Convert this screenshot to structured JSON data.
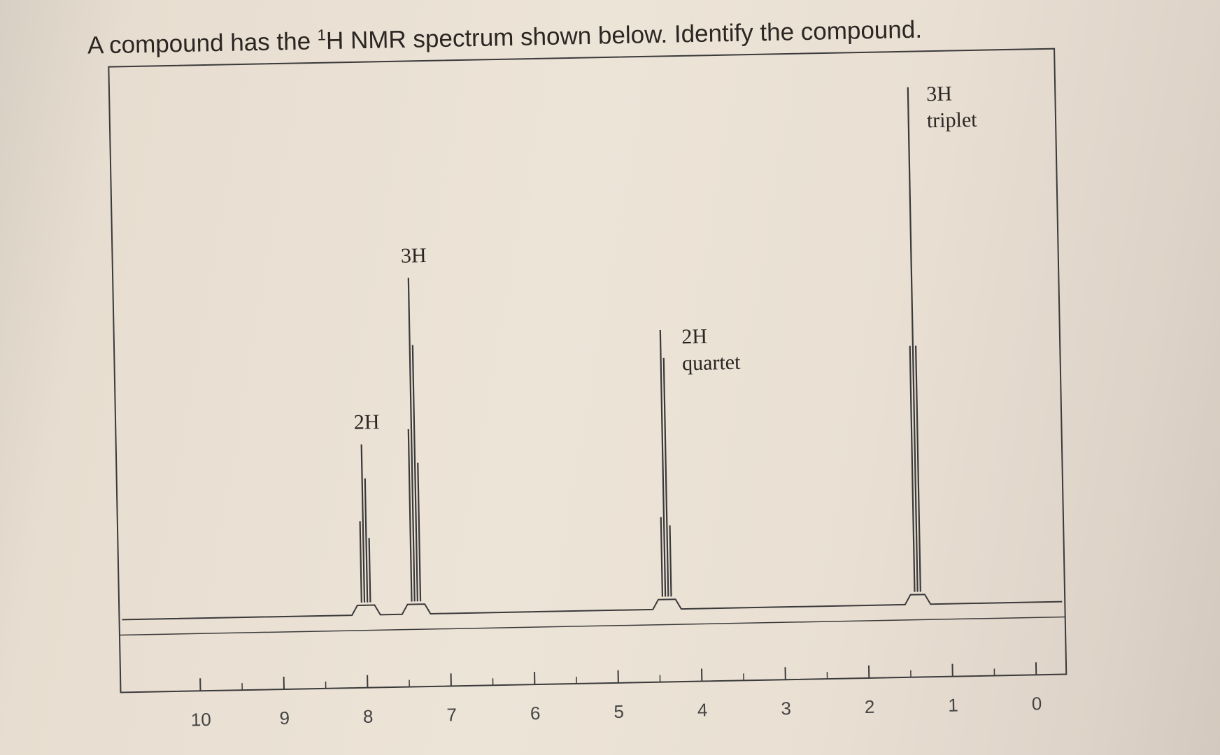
{
  "question": {
    "prefix": "A compound has the ",
    "superscript": "1",
    "suffix": "H NMR spectrum shown below. Identify the compound."
  },
  "chart_data": {
    "type": "line",
    "title": "",
    "xlabel": "",
    "ylabel": "",
    "x_reversed": true,
    "xlim": [
      10,
      0
    ],
    "x_ticks": [
      "10",
      "9",
      "8",
      "7",
      "6",
      "5",
      "4",
      "3",
      "2",
      "1",
      "0"
    ],
    "peaks": [
      {
        "shift": 8.0,
        "integration": "2H",
        "multiplicity": "",
        "relative_height": 0.33
      },
      {
        "shift": 7.4,
        "integration": "3H",
        "multiplicity": "",
        "relative_height": 0.65
      },
      {
        "shift": 4.4,
        "integration": "2H",
        "multiplicity": "quartet",
        "relative_height": 0.54
      },
      {
        "shift": 1.4,
        "integration": "3H",
        "multiplicity": "triplet",
        "relative_height": 1.0
      }
    ],
    "colors": {
      "trace": "#3a3a3a",
      "frame": "#3a3a3a",
      "text": "#2b2622"
    }
  }
}
